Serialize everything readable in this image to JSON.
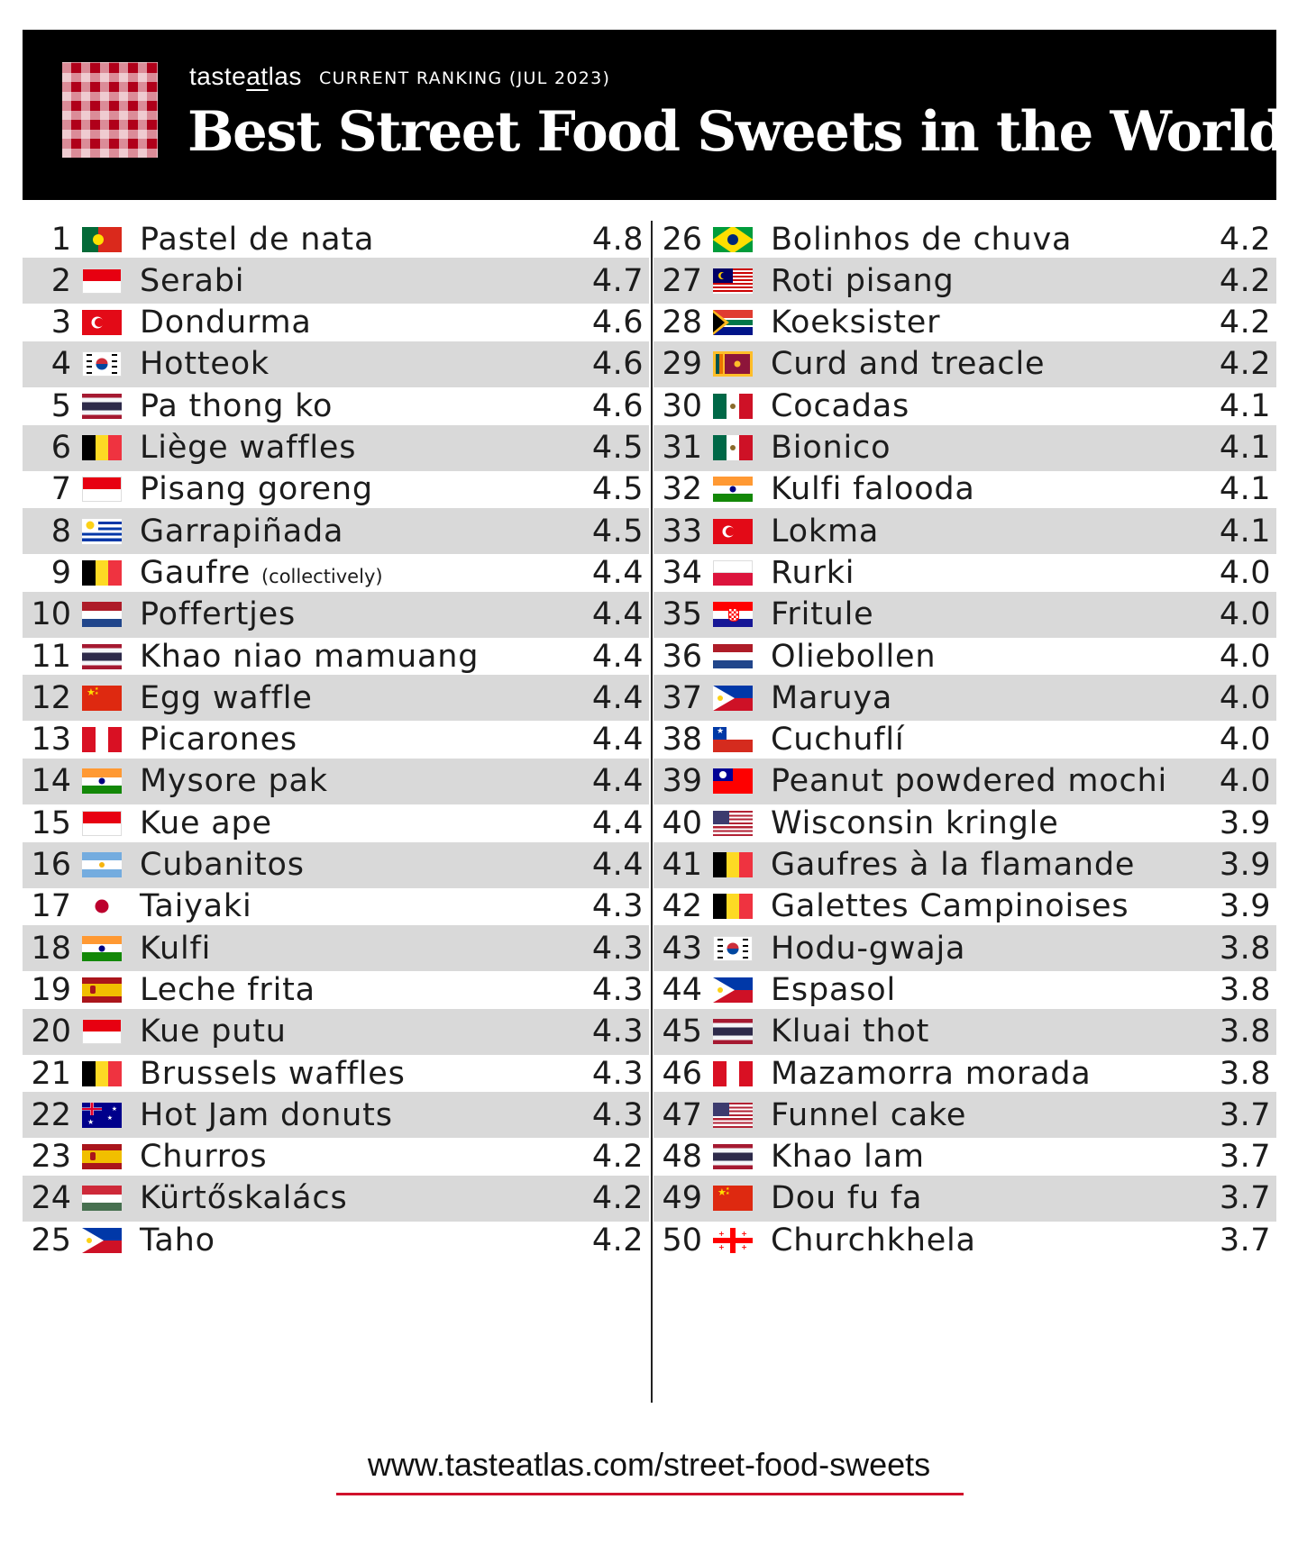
{
  "header": {
    "brand_prefix": "taste",
    "brand_middle": "at",
    "brand_suffix": "las",
    "subtitle": "CURRENT RANKING (JUL 2023)",
    "title": "Best Street Food Sweets in the World"
  },
  "items": [
    {
      "rank": "1",
      "name": "Pastel de nata",
      "note": "",
      "score": "4.8",
      "flag": "portugal"
    },
    {
      "rank": "2",
      "name": "Serabi",
      "note": "",
      "score": "4.7",
      "flag": "indonesia"
    },
    {
      "rank": "3",
      "name": "Dondurma",
      "note": "",
      "score": "4.6",
      "flag": "turkey"
    },
    {
      "rank": "4",
      "name": "Hotteok",
      "note": "",
      "score": "4.6",
      "flag": "south-korea"
    },
    {
      "rank": "5",
      "name": "Pa thong ko",
      "note": "",
      "score": "4.6",
      "flag": "thailand"
    },
    {
      "rank": "6",
      "name": "Liège waffles",
      "note": "",
      "score": "4.5",
      "flag": "belgium"
    },
    {
      "rank": "7",
      "name": "Pisang goreng",
      "note": "",
      "score": "4.5",
      "flag": "indonesia"
    },
    {
      "rank": "8",
      "name": "Garrapiñada",
      "note": "",
      "score": "4.5",
      "flag": "uruguay"
    },
    {
      "rank": "9",
      "name": "Gaufre",
      "note": "(collectively)",
      "score": "4.4",
      "flag": "belgium"
    },
    {
      "rank": "10",
      "name": "Poffertjes",
      "note": "",
      "score": "4.4",
      "flag": "netherlands"
    },
    {
      "rank": "11",
      "name": "Khao niao mamuang",
      "note": "",
      "score": "4.4",
      "flag": "thailand"
    },
    {
      "rank": "12",
      "name": "Egg waffle",
      "note": "",
      "score": "4.4",
      "flag": "china"
    },
    {
      "rank": "13",
      "name": "Picarones",
      "note": "",
      "score": "4.4",
      "flag": "peru"
    },
    {
      "rank": "14",
      "name": "Mysore pak",
      "note": "",
      "score": "4.4",
      "flag": "india"
    },
    {
      "rank": "15",
      "name": "Kue ape",
      "note": "",
      "score": "4.4",
      "flag": "indonesia"
    },
    {
      "rank": "16",
      "name": "Cubanitos",
      "note": "",
      "score": "4.4",
      "flag": "argentina"
    },
    {
      "rank": "17",
      "name": "Taiyaki",
      "note": "",
      "score": "4.3",
      "flag": "japan"
    },
    {
      "rank": "18",
      "name": "Kulfi",
      "note": "",
      "score": "4.3",
      "flag": "india"
    },
    {
      "rank": "19",
      "name": "Leche frita",
      "note": "",
      "score": "4.3",
      "flag": "spain"
    },
    {
      "rank": "20",
      "name": "Kue putu",
      "note": "",
      "score": "4.3",
      "flag": "indonesia"
    },
    {
      "rank": "21",
      "name": "Brussels waffles",
      "note": "",
      "score": "4.3",
      "flag": "belgium"
    },
    {
      "rank": "22",
      "name": "Hot Jam donuts",
      "note": "",
      "score": "4.3",
      "flag": "australia"
    },
    {
      "rank": "23",
      "name": "Churros",
      "note": "",
      "score": "4.2",
      "flag": "spain"
    },
    {
      "rank": "24",
      "name": "Kürtőskalács",
      "note": "",
      "score": "4.2",
      "flag": "hungary"
    },
    {
      "rank": "25",
      "name": "Taho",
      "note": "",
      "score": "4.2",
      "flag": "philippines"
    },
    {
      "rank": "26",
      "name": "Bolinhos de chuva",
      "note": "",
      "score": "4.2",
      "flag": "brazil"
    },
    {
      "rank": "27",
      "name": "Roti pisang",
      "note": "",
      "score": "4.2",
      "flag": "malaysia"
    },
    {
      "rank": "28",
      "name": "Koeksister",
      "note": "",
      "score": "4.2",
      "flag": "south-africa"
    },
    {
      "rank": "29",
      "name": "Curd and treacle",
      "note": "",
      "score": "4.2",
      "flag": "sri-lanka"
    },
    {
      "rank": "30",
      "name": "Cocadas",
      "note": "",
      "score": "4.1",
      "flag": "mexico"
    },
    {
      "rank": "31",
      "name": "Bionico",
      "note": "",
      "score": "4.1",
      "flag": "mexico"
    },
    {
      "rank": "32",
      "name": "Kulfi falooda",
      "note": "",
      "score": "4.1",
      "flag": "india"
    },
    {
      "rank": "33",
      "name": "Lokma",
      "note": "",
      "score": "4.1",
      "flag": "turkey"
    },
    {
      "rank": "34",
      "name": "Rurki",
      "note": "",
      "score": "4.0",
      "flag": "poland"
    },
    {
      "rank": "35",
      "name": "Fritule",
      "note": "",
      "score": "4.0",
      "flag": "croatia"
    },
    {
      "rank": "36",
      "name": "Oliebollen",
      "note": "",
      "score": "4.0",
      "flag": "netherlands"
    },
    {
      "rank": "37",
      "name": "Maruya",
      "note": "",
      "score": "4.0",
      "flag": "philippines"
    },
    {
      "rank": "38",
      "name": "Cuchuflí",
      "note": "",
      "score": "4.0",
      "flag": "chile"
    },
    {
      "rank": "39",
      "name": "Peanut powdered mochi",
      "note": "",
      "score": "4.0",
      "flag": "taiwan"
    },
    {
      "rank": "40",
      "name": "Wisconsin kringle",
      "note": "",
      "score": "3.9",
      "flag": "usa"
    },
    {
      "rank": "41",
      "name": "Gaufres à la flamande",
      "note": "",
      "score": "3.9",
      "flag": "belgium"
    },
    {
      "rank": "42",
      "name": "Galettes Campinoises",
      "note": "",
      "score": "3.9",
      "flag": "belgium"
    },
    {
      "rank": "43",
      "name": "Hodu-gwaja",
      "note": "",
      "score": "3.8",
      "flag": "south-korea"
    },
    {
      "rank": "44",
      "name": "Espasol",
      "note": "",
      "score": "3.8",
      "flag": "philippines"
    },
    {
      "rank": "45",
      "name": "Kluai thot",
      "note": "",
      "score": "3.8",
      "flag": "thailand"
    },
    {
      "rank": "46",
      "name": "Mazamorra morada",
      "note": "",
      "score": "3.8",
      "flag": "peru"
    },
    {
      "rank": "47",
      "name": "Funnel cake",
      "note": "",
      "score": "3.7",
      "flag": "usa"
    },
    {
      "rank": "48",
      "name": "Khao lam",
      "note": "",
      "score": "3.7",
      "flag": "thailand"
    },
    {
      "rank": "49",
      "name": "Dou fu fa",
      "note": "",
      "score": "3.7",
      "flag": "china"
    },
    {
      "rank": "50",
      "name": "Churchkhela",
      "note": "",
      "score": "3.7",
      "flag": "georgia"
    }
  ],
  "footer": {
    "url": "www.tasteatlas.com/street-food-sweets"
  },
  "colors": {
    "header_bg": "#000000",
    "row_shade": "#d9d9d9",
    "accent_red": "#d0112b"
  }
}
